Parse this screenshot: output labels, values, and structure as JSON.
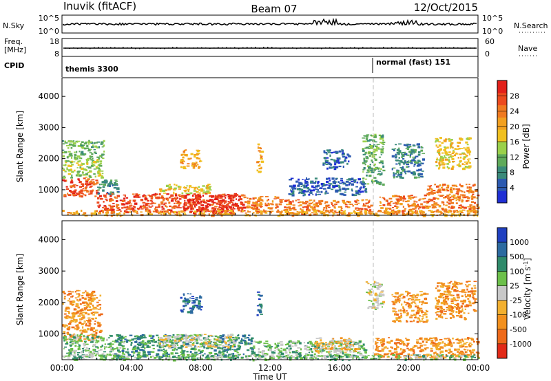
{
  "header": {
    "station": "Inuvik (fitACF)",
    "beam": "Beam 07",
    "date": "12/Oct/2015"
  },
  "top_panels": {
    "nsky": {
      "label": "N.Sky",
      "tick_top": "10^5",
      "tick_bottom": "10^0",
      "right_label": "N.Search",
      "right_tick_top": "10^5",
      "right_tick_bottom": "10^0"
    },
    "freq": {
      "label_line1": "Freq.",
      "label_line2": "[MHz]",
      "tick_top": "18",
      "tick_bottom": "8",
      "right_label": "Nave",
      "right_tick_top": "60",
      "right_tick_bottom": "0"
    },
    "cpid": {
      "label": "CPID",
      "mode_left": "themis 3300",
      "mode_right": "normal (fast) 151"
    }
  },
  "chart_data": [
    {
      "type": "heatmap",
      "ylabel": "Slant Range [km]",
      "xlabel": "",
      "x_range_hours": [
        0,
        24
      ],
      "ylim": [
        180,
        4600
      ],
      "y_ticks": [
        "1000",
        "2000",
        "3000",
        "4000"
      ],
      "colorbar": {
        "label": "Power [dB]",
        "ticks": [
          "4",
          "8",
          "12",
          "16",
          "20",
          "24",
          "28"
        ],
        "colors": [
          "#1f2fd4",
          "#2c5ab0",
          "#3a8a7a",
          "#5faa5a",
          "#9ad04a",
          "#f0c020",
          "#f2a020",
          "#f07a20",
          "#ec4a1e",
          "#e2201a"
        ]
      },
      "blobs": [
        {
          "x0": 0.0,
          "x1": 2.0,
          "y0": 800,
          "y1": 1400,
          "c": 8
        },
        {
          "x0": 0.0,
          "x1": 2.3,
          "y0": 1400,
          "y1": 2000,
          "c": 4
        },
        {
          "x0": 0.0,
          "x1": 2.4,
          "y0": 2000,
          "y1": 2600,
          "c": 3
        },
        {
          "x0": 2.0,
          "x1": 3.2,
          "y0": 850,
          "y1": 1350,
          "c": 2
        },
        {
          "x0": 2.0,
          "x1": 10.5,
          "y0": 300,
          "y1": 900,
          "c": 8
        },
        {
          "x0": 7.0,
          "x1": 10.0,
          "y0": 250,
          "y1": 850,
          "c": 9
        },
        {
          "x0": 5.5,
          "x1": 8.5,
          "y0": 900,
          "y1": 1200,
          "c": 5
        },
        {
          "x0": 6.8,
          "x1": 8.0,
          "y0": 1700,
          "y1": 2300,
          "c": 6
        },
        {
          "x0": 10.5,
          "x1": 13.0,
          "y0": 300,
          "y1": 800,
          "c": 7
        },
        {
          "x0": 11.2,
          "x1": 11.5,
          "y0": 1600,
          "y1": 2500,
          "c": 6
        },
        {
          "x0": 13.0,
          "x1": 17.8,
          "y0": 250,
          "y1": 700,
          "c": 7
        },
        {
          "x0": 13.0,
          "x1": 17.5,
          "y0": 850,
          "y1": 1400,
          "c": 1
        },
        {
          "x0": 15.0,
          "x1": 16.5,
          "y0": 1700,
          "y1": 2300,
          "c": 1
        },
        {
          "x0": 17.3,
          "x1": 18.5,
          "y0": 1200,
          "y1": 2800,
          "c": 3
        },
        {
          "x0": 18.3,
          "x1": 21.0,
          "y0": 250,
          "y1": 850,
          "c": 7
        },
        {
          "x0": 21.0,
          "x1": 24.0,
          "y0": 300,
          "y1": 1200,
          "c": 7
        },
        {
          "x0": 19.0,
          "x1": 20.8,
          "y0": 1400,
          "y1": 2500,
          "c": 2
        },
        {
          "x0": 21.5,
          "x1": 23.5,
          "y0": 1700,
          "y1": 2700,
          "c": 5
        },
        {
          "x0": 0.0,
          "x1": 24.0,
          "y0": 190,
          "y1": 360,
          "c": 6
        }
      ]
    },
    {
      "type": "heatmap",
      "ylabel": "Slant Range [km]",
      "xlabel": "Time UT",
      "x_range_hours": [
        0,
        24
      ],
      "x_ticks": [
        "00:00",
        "04:00",
        "08:00",
        "12:00",
        "16:00",
        "20:00",
        "00:00"
      ],
      "ylim": [
        180,
        4600
      ],
      "y_ticks": [
        "1000",
        "2000",
        "3000",
        "4000"
      ],
      "colorbar": {
        "label": "Velocity [m s^-1]",
        "label_main": "Velocity [m s",
        "label_exp": "-1",
        "label_close": "]",
        "ticks": [
          "1000",
          "500",
          "100",
          "25",
          "-25",
          "-100",
          "-500",
          "-1000"
        ],
        "colors": [
          "#2040c0",
          "#2c6aa0",
          "#2f8a6a",
          "#6cc04a",
          "#c8c8c8",
          "#f2b030",
          "#f2901e",
          "#ee6a1a",
          "#e22a18"
        ]
      },
      "blobs": [
        {
          "x0": 0.0,
          "x1": 2.2,
          "y0": 800,
          "y1": 2400,
          "c": 6
        },
        {
          "x0": 0.0,
          "x1": 3.5,
          "y0": 300,
          "y1": 1000,
          "c": 3
        },
        {
          "x0": 3.0,
          "x1": 11.0,
          "y0": 250,
          "y1": 1000,
          "c": 2
        },
        {
          "x0": 5.5,
          "x1": 10.0,
          "y0": 600,
          "y1": 1000,
          "c": 4
        },
        {
          "x0": 6.8,
          "x1": 8.0,
          "y0": 1700,
          "y1": 2300,
          "c": 1
        },
        {
          "x0": 11.0,
          "x1": 17.5,
          "y0": 250,
          "y1": 800,
          "c": 3
        },
        {
          "x0": 11.2,
          "x1": 11.5,
          "y0": 1600,
          "y1": 2400,
          "c": 1
        },
        {
          "x0": 14.5,
          "x1": 17.0,
          "y0": 400,
          "y1": 900,
          "c": 5
        },
        {
          "x0": 17.5,
          "x1": 18.5,
          "y0": 1800,
          "y1": 2700,
          "c": 4
        },
        {
          "x0": 18.0,
          "x1": 24.0,
          "y0": 250,
          "y1": 900,
          "c": 6
        },
        {
          "x0": 19.0,
          "x1": 21.0,
          "y0": 1400,
          "y1": 2400,
          "c": 6
        },
        {
          "x0": 21.5,
          "x1": 23.8,
          "y0": 1500,
          "y1": 2700,
          "c": 6
        },
        {
          "x0": 0.0,
          "x1": 24.0,
          "y0": 190,
          "y1": 360,
          "c": 3
        }
      ]
    }
  ]
}
